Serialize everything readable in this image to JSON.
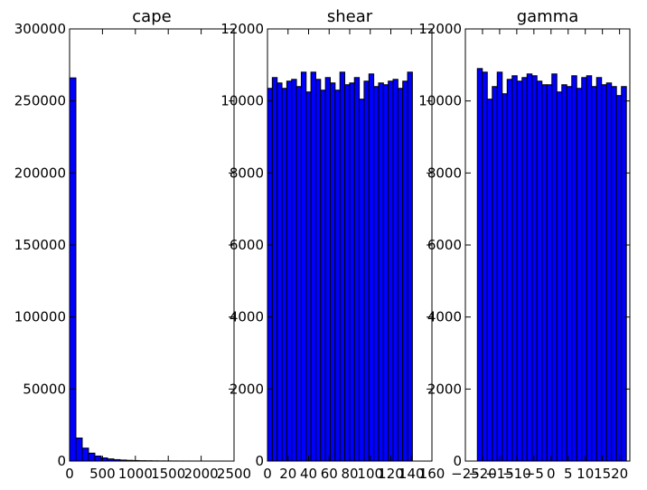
{
  "chart_data": [
    {
      "type": "histogram",
      "title": "cape",
      "color": "#0000ff",
      "bins": [
        0,
        96,
        192,
        288,
        384,
        480,
        576,
        672,
        768,
        864,
        960,
        1056,
        1152,
        1248,
        1344,
        1440,
        1536,
        1632,
        1728,
        1824,
        1920,
        2016,
        2112,
        2208,
        2304,
        2400
      ],
      "values": [
        266000,
        16000,
        9000,
        5500,
        3500,
        2200,
        1500,
        1000,
        700,
        500,
        350,
        250,
        200,
        150,
        100,
        80,
        60,
        40,
        30,
        20,
        15,
        10,
        5,
        5,
        2
      ],
      "xlim": [
        0,
        2500
      ],
      "xticks": [
        0,
        500,
        1000,
        1500,
        2000,
        2500
      ],
      "ylim": [
        0,
        300000
      ],
      "yticks": [
        0,
        50000,
        100000,
        150000,
        200000,
        250000,
        300000
      ]
    },
    {
      "type": "histogram",
      "title": "shear",
      "color": "#0000ff",
      "bins": [
        0,
        4.7,
        9.4,
        14.1,
        18.8,
        23.5,
        28.2,
        32.9,
        37.6,
        42.3,
        47,
        51.7,
        56.4,
        61.1,
        65.8,
        70.5,
        75.2,
        79.9,
        84.6,
        89.3,
        94,
        98.7,
        103.4,
        108.1,
        112.8,
        117.5,
        122.2,
        126.9,
        131.6,
        136.3,
        141
      ],
      "values": [
        10350,
        10650,
        10500,
        10350,
        10550,
        10600,
        10400,
        10800,
        10250,
        10800,
        10600,
        10300,
        10650,
        10500,
        10300,
        10800,
        10450,
        10500,
        10650,
        10050,
        10550,
        10750,
        10400,
        10500,
        10450,
        10550,
        10600,
        10350,
        10550,
        10800
      ],
      "xlim": [
        0,
        160
      ],
      "xticks": [
        0,
        20,
        40,
        60,
        80,
        100,
        120,
        140,
        160
      ],
      "ylim": [
        0,
        12000
      ],
      "yticks": [
        0,
        2000,
        4000,
        6000,
        8000,
        10000,
        12000
      ]
    },
    {
      "type": "histogram",
      "title": "gamma",
      "color": "#0000ff",
      "bins": [
        -21.5,
        -20.05,
        -18.6,
        -17.15,
        -15.7,
        -14.25,
        -12.8,
        -11.35,
        -9.9,
        -8.45,
        -7,
        -5.55,
        -4.1,
        -2.65,
        -1.2,
        0.25,
        1.7,
        3.15,
        4.6,
        6.05,
        7.5,
        8.95,
        10.4,
        11.85,
        13.3,
        14.75,
        16.2,
        17.65,
        19.1,
        20.55,
        22
      ],
      "values": [
        10900,
        10800,
        10050,
        10400,
        10800,
        10200,
        10600,
        10700,
        10550,
        10650,
        10750,
        10700,
        10550,
        10450,
        10450,
        10750,
        10250,
        10450,
        10400,
        10700,
        10350,
        10650,
        10700,
        10400,
        10650,
        10450,
        10500,
        10400,
        10150,
        10400
      ],
      "xlim": [
        -25,
        23
      ],
      "xticks": [
        {
          "value": -25,
          "label": "−25"
        },
        {
          "value": -20,
          "label": "−20"
        },
        {
          "value": -15,
          "label": "−15"
        },
        {
          "value": -10,
          "label": "−10"
        },
        {
          "value": -5,
          "label": "−5"
        },
        0,
        5,
        10,
        15,
        20
      ],
      "ylim": [
        0,
        12000
      ],
      "yticks": [
        0,
        2000,
        4000,
        6000,
        8000,
        10000,
        12000
      ]
    }
  ]
}
